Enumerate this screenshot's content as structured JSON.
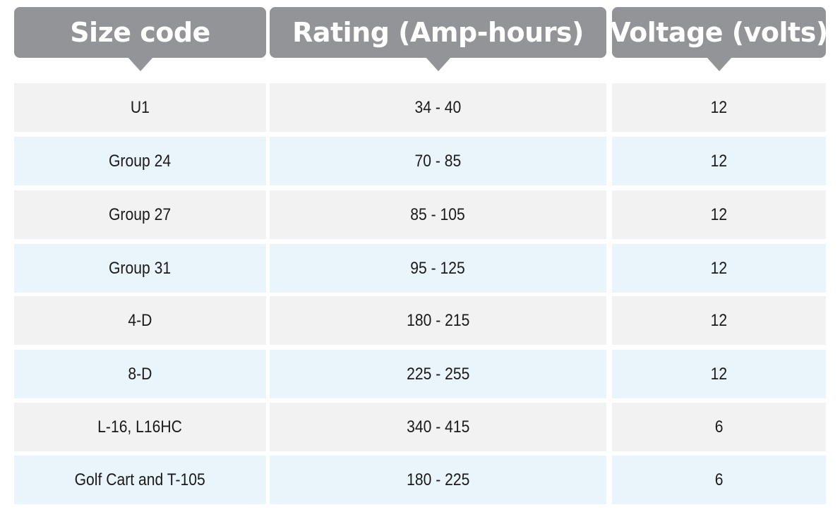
{
  "header": {
    "columns": [
      "Size code",
      "Rating (Amp-hours)",
      "Voltage (volts)"
    ]
  },
  "table": {
    "rows": [
      [
        "U1",
        "34 - 40",
        "12"
      ],
      [
        "Group 24",
        "70 - 85",
        "12"
      ],
      [
        "Group 27",
        "85 - 105",
        "12"
      ],
      [
        "Group 31",
        "95 - 125",
        "12"
      ],
      [
        "4-D",
        "180 - 215",
        "12"
      ],
      [
        "8-D",
        "225 - 255",
        "12"
      ],
      [
        "L-16, L16HC",
        "340 - 415",
        "6"
      ],
      [
        "Golf Cart and T-105",
        "180 - 225",
        "6"
      ]
    ]
  }
}
